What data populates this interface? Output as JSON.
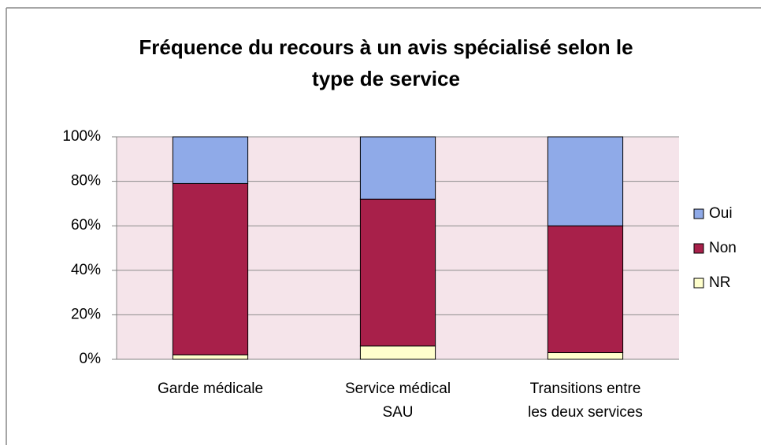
{
  "chart_data": {
    "type": "stacked_bar",
    "title": "Fréquence du recours à un avis spécialisé selon le type de service",
    "categories": [
      "Garde médicale",
      "Service médical SAU",
      "Transitions entre les deux services"
    ],
    "series": [
      {
        "name": "NR",
        "color": "#ffffcc",
        "values": [
          2,
          6,
          3
        ]
      },
      {
        "name": "Non",
        "color": "#a8204a",
        "values": [
          77,
          66,
          57
        ]
      },
      {
        "name": "Oui",
        "color": "#8faae8",
        "values": [
          21,
          28,
          40
        ]
      }
    ],
    "ylim": [
      0,
      100
    ],
    "yticks": [
      {
        "value": 0,
        "label": "0%"
      },
      {
        "value": 20,
        "label": "20%"
      },
      {
        "value": 40,
        "label": "40%"
      },
      {
        "value": 60,
        "label": "60%"
      },
      {
        "value": 80,
        "label": "80%"
      },
      {
        "value": 100,
        "label": "100%"
      }
    ],
    "grid": true,
    "legend": "right"
  }
}
